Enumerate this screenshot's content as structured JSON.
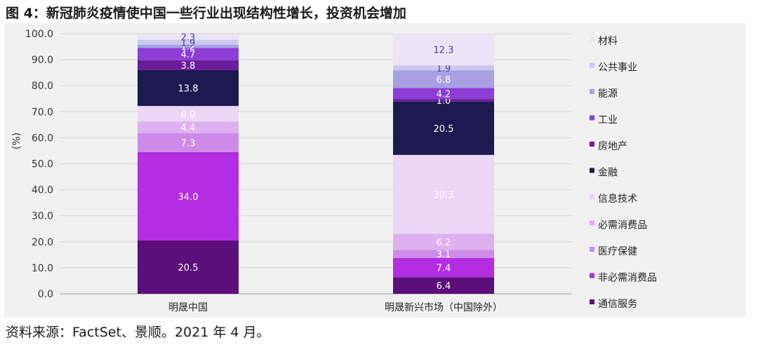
{
  "title": "图 4：新冠肺炎疫情使中国一些行业出现结构性增长，投资机会增加",
  "source": "资料来源：FactSet、景顺。2021 年 4 月。",
  "chart_data": {
    "type": "bar",
    "stacked": true,
    "ylabel": "(%)",
    "ylim": [
      0,
      100
    ],
    "yticks": [
      "0.0",
      "10.0",
      "20.0",
      "30.0",
      "40.0",
      "50.0",
      "60.0",
      "70.0",
      "80.0",
      "90.0",
      "100.0"
    ],
    "categories": [
      "明晟中国",
      "明晟新兴市场（中国除外）"
    ],
    "legend_position": "right",
    "series": [
      {
        "name": "通信服务",
        "color": "#5c0f7a",
        "values": [
          20.5,
          6.4
        ],
        "labels": [
          "20.5",
          "6.4"
        ],
        "label_color": "#ffffff"
      },
      {
        "name": "非必需消费品",
        "color": "#b22ee0",
        "values": [
          34.0,
          7.4
        ],
        "labels": [
          "34.0",
          "7.4"
        ],
        "label_color": "#ffffff"
      },
      {
        "name": "医疗保健",
        "color": "#cd8be9",
        "values": [
          7.3,
          3.1
        ],
        "labels": [
          "7.3",
          "3.1"
        ],
        "label_color": "#ffffff"
      },
      {
        "name": "必需消费品",
        "color": "#dfb0ef",
        "values": [
          4.4,
          6.2
        ],
        "labels": [
          "4.4",
          "6.2"
        ],
        "label_color": "#ffffff"
      },
      {
        "name": "信息技术",
        "color": "#ecd6f6",
        "values": [
          6.0,
          30.3
        ],
        "labels": [
          "6.0",
          "30.3"
        ],
        "label_color": "#ffffff"
      },
      {
        "name": "金融",
        "color": "#1c1a4f",
        "values": [
          13.8,
          20.5
        ],
        "labels": [
          "13.8",
          "20.5"
        ],
        "label_color": "#ffffff"
      },
      {
        "name": "房地产",
        "color": "#6a1d9a",
        "values": [
          3.8,
          1.0
        ],
        "labels": [
          "3.8",
          "1.0"
        ],
        "label_color": "#ffffff"
      },
      {
        "name": "工业",
        "color": "#8d3ed6",
        "values": [
          4.7,
          4.2
        ],
        "labels": [
          "4.7",
          "4.2"
        ],
        "label_color": "#ffffff"
      },
      {
        "name": "能源",
        "color": "#a7a1e2",
        "values": [
          1.2,
          6.8
        ],
        "labels": [
          "1.2",
          "6.8"
        ],
        "label_color": "#ffffff"
      },
      {
        "name": "公共事业",
        "color": "#c9c8ee",
        "values": [
          1.9,
          1.9
        ],
        "labels": [
          "1.9",
          "1.9"
        ],
        "label_color": "#4b3f9e"
      },
      {
        "name": "材料",
        "color": "#ece4f7",
        "values": [
          2.3,
          12.3
        ],
        "labels": [
          "2.3",
          "12.3"
        ],
        "label_color": "#4b3f9e"
      }
    ]
  }
}
